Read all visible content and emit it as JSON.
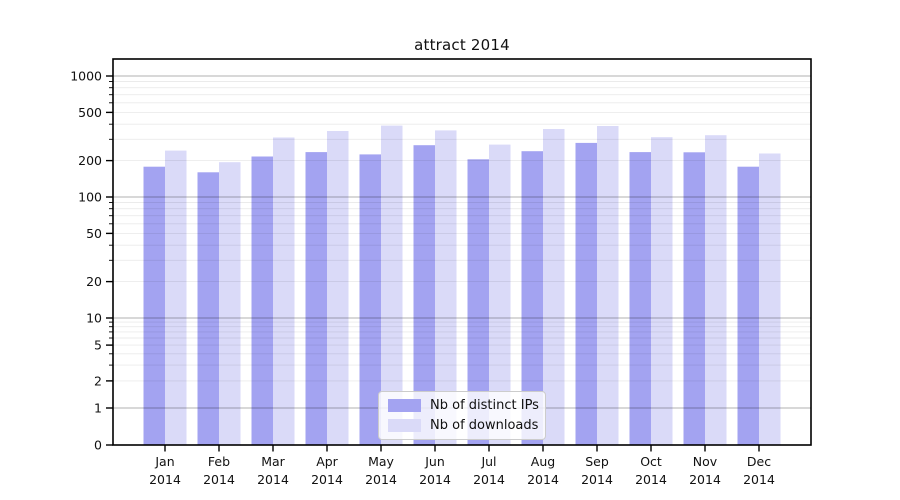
{
  "chart_data": {
    "type": "bar",
    "title": "attract 2014",
    "categories": [
      "Jan 2014",
      "Feb 2014",
      "Mar 2014",
      "Apr 2014",
      "May 2014",
      "Jun 2014",
      "Jul 2014",
      "Aug 2014",
      "Sep 2014",
      "Oct 2014",
      "Nov 2014",
      "Dec 2014"
    ],
    "series": [
      {
        "name": "Nb of distinct IPs",
        "color": "#a3a3f1",
        "values": [
          178,
          160,
          216,
          235,
          225,
          268,
          205,
          239,
          280,
          235,
          234,
          178
        ]
      },
      {
        "name": "Nb of downloads",
        "color": "#dadaf8",
        "values": [
          242,
          194,
          310,
          351,
          389,
          355,
          271,
          365,
          386,
          312,
          324,
          229
        ]
      }
    ],
    "yscale": "symlog",
    "yticks": [
      0,
      1,
      2,
      5,
      10,
      20,
      50,
      100,
      200,
      500,
      1000
    ],
    "ylim": [
      0,
      1400
    ],
    "xlabel": "",
    "ylabel": "",
    "grid": "horizontal major+minor, drawn above bars",
    "legend_position": "lower center inside plot",
    "colors": {
      "axis": "#000000",
      "text": "#111111",
      "major_grid": "rgba(0,0,0,0.30)",
      "minor_grid": "rgba(0,0,0,0.08)",
      "background": "#ffffff"
    }
  }
}
